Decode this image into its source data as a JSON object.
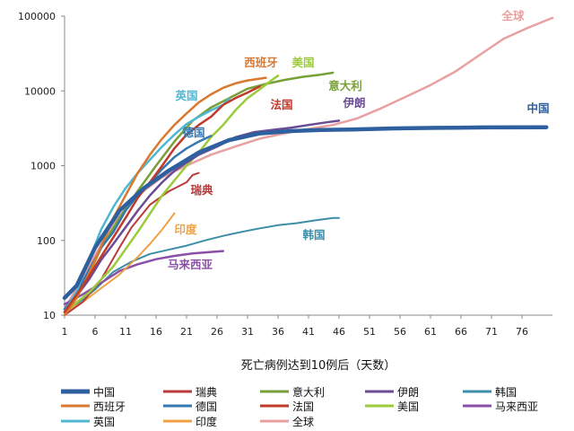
{
  "chart_data": {
    "type": "line",
    "xlabel": "死亡病例达到10例后（天数）",
    "ylabel": "",
    "y_scale": "log",
    "ylim": [
      10,
      100000
    ],
    "xlim": [
      1,
      81
    ],
    "grid": false,
    "legend_position": "bottom",
    "y_ticks": [
      {
        "value": 10,
        "label": "10"
      },
      {
        "value": 100,
        "label": "100"
      },
      {
        "value": 1000,
        "label": "1000"
      },
      {
        "value": 10000,
        "label": "10000"
      },
      {
        "value": 100000,
        "label": "100000"
      }
    ],
    "x_ticks": [
      1,
      6,
      11,
      16,
      21,
      26,
      31,
      36,
      41,
      46,
      51,
      56,
      61,
      66,
      71,
      76
    ],
    "x_tick_labels": [
      "1",
      "6",
      "11",
      "16",
      "21",
      "26",
      "31",
      "36",
      "41",
      "46",
      "51",
      "56",
      "61",
      "66",
      "71",
      "76"
    ],
    "series": [
      {
        "name": "中国",
        "color": "#2E5F9E",
        "width": 4.5,
        "label": "中国",
        "points": [
          [
            1,
            17
          ],
          [
            3,
            25
          ],
          [
            6,
            80
          ],
          [
            10,
            250
          ],
          [
            14,
            500
          ],
          [
            18,
            850
          ],
          [
            23,
            1500
          ],
          [
            28,
            2200
          ],
          [
            33,
            2700
          ],
          [
            38,
            2900
          ],
          [
            43,
            3000
          ],
          [
            48,
            3050
          ],
          [
            55,
            3150
          ],
          [
            62,
            3200
          ],
          [
            70,
            3250
          ],
          [
            80,
            3270
          ]
        ]
      },
      {
        "name": "瑞典",
        "color": "#B83A3A",
        "width": 2,
        "label": "瑞典",
        "points": [
          [
            1,
            10
          ],
          [
            4,
            15
          ],
          [
            7,
            30
          ],
          [
            10,
            80
          ],
          [
            12,
            150
          ],
          [
            15,
            300
          ],
          [
            18,
            450
          ],
          [
            21,
            600
          ],
          [
            22,
            750
          ],
          [
            23,
            800
          ]
        ]
      },
      {
        "name": "意大利",
        "color": "#77A038",
        "width": 2.5,
        "label": "意大利",
        "points": [
          [
            1,
            12
          ],
          [
            3,
            18
          ],
          [
            5,
            35
          ],
          [
            7,
            80
          ],
          [
            10,
            200
          ],
          [
            13,
            460
          ],
          [
            16,
            1000
          ],
          [
            19,
            2100
          ],
          [
            22,
            4000
          ],
          [
            25,
            6000
          ],
          [
            28,
            8000
          ],
          [
            31,
            10700
          ],
          [
            34,
            12400
          ],
          [
            37,
            14000
          ],
          [
            40,
            15400
          ],
          [
            43,
            16500
          ],
          [
            45,
            17500
          ]
        ]
      },
      {
        "name": "伊朗",
        "color": "#6A4C94",
        "width": 2.5,
        "label": "伊朗",
        "points": [
          [
            1,
            11
          ],
          [
            3,
            18
          ],
          [
            5,
            30
          ],
          [
            7,
            55
          ],
          [
            9,
            90
          ],
          [
            11,
            150
          ],
          [
            13,
            250
          ],
          [
            15,
            400
          ],
          [
            17,
            600
          ],
          [
            19,
            850
          ],
          [
            21,
            1100
          ],
          [
            23,
            1400
          ],
          [
            26,
            1800
          ],
          [
            29,
            2400
          ],
          [
            32,
            2800
          ],
          [
            35,
            3000
          ],
          [
            38,
            3200
          ],
          [
            41,
            3500
          ],
          [
            44,
            3800
          ],
          [
            46,
            4000
          ]
        ]
      },
      {
        "name": "韩国",
        "color": "#3C8EA8",
        "width": 2,
        "label": "韩国",
        "points": [
          [
            1,
            11
          ],
          [
            3,
            14
          ],
          [
            6,
            22
          ],
          [
            9,
            38
          ],
          [
            12,
            52
          ],
          [
            15,
            66
          ],
          [
            18,
            75
          ],
          [
            21,
            85
          ],
          [
            24,
            100
          ],
          [
            27,
            115
          ],
          [
            30,
            130
          ],
          [
            33,
            145
          ],
          [
            36,
            160
          ],
          [
            39,
            170
          ],
          [
            42,
            185
          ],
          [
            45,
            200
          ],
          [
            46,
            200
          ]
        ]
      },
      {
        "name": "西班牙",
        "color": "#D9782F",
        "width": 2.5,
        "label": "西班牙",
        "points": [
          [
            1,
            10
          ],
          [
            3,
            17
          ],
          [
            5,
            36
          ],
          [
            7,
            84
          ],
          [
            9,
            200
          ],
          [
            11,
            400
          ],
          [
            13,
            800
          ],
          [
            15,
            1400
          ],
          [
            17,
            2300
          ],
          [
            19,
            3500
          ],
          [
            21,
            5000
          ],
          [
            23,
            7000
          ],
          [
            25,
            9000
          ],
          [
            27,
            11000
          ],
          [
            29,
            12600
          ],
          [
            31,
            13800
          ],
          [
            34,
            15000
          ]
        ]
      },
      {
        "name": "德国",
        "color": "#3577B0",
        "width": 2.5,
        "label": "德国",
        "points": [
          [
            1,
            12
          ],
          [
            3,
            20
          ],
          [
            5,
            40
          ],
          [
            7,
            80
          ],
          [
            9,
            130
          ],
          [
            11,
            250
          ],
          [
            13,
            400
          ],
          [
            15,
            600
          ],
          [
            17,
            900
          ],
          [
            19,
            1300
          ],
          [
            21,
            1700
          ],
          [
            23,
            2100
          ],
          [
            25,
            2500
          ]
        ]
      },
      {
        "name": "法国",
        "color": "#C0392B",
        "width": 2.5,
        "label": "法国",
        "points": [
          [
            1,
            11
          ],
          [
            3,
            19
          ],
          [
            5,
            33
          ],
          [
            7,
            61
          ],
          [
            9,
            110
          ],
          [
            11,
            200
          ],
          [
            13,
            370
          ],
          [
            15,
            600
          ],
          [
            17,
            1000
          ],
          [
            19,
            1700
          ],
          [
            21,
            2600
          ],
          [
            23,
            3500
          ],
          [
            25,
            4500
          ],
          [
            27,
            6500
          ],
          [
            29,
            8000
          ],
          [
            31,
            9500
          ],
          [
            33,
            11500
          ]
        ]
      },
      {
        "name": "美国",
        "color": "#9BCB3B",
        "width": 2.5,
        "label": "美国",
        "points": [
          [
            1,
            11
          ],
          [
            5,
            20
          ],
          [
            9,
            45
          ],
          [
            13,
            130
          ],
          [
            17,
            400
          ],
          [
            21,
            1000
          ],
          [
            23,
            1500
          ],
          [
            25,
            2400
          ],
          [
            27,
            3500
          ],
          [
            29,
            5500
          ],
          [
            31,
            8000
          ],
          [
            33,
            10500
          ],
          [
            35,
            14000
          ],
          [
            36,
            16000
          ]
        ]
      },
      {
        "name": "马来西亚",
        "color": "#8B4FA8",
        "width": 2.5,
        "label": "马来西亚",
        "points": [
          [
            1,
            14
          ],
          [
            4,
            19
          ],
          [
            7,
            27
          ],
          [
            10,
            39
          ],
          [
            13,
            48
          ],
          [
            16,
            56
          ],
          [
            19,
            62
          ],
          [
            22,
            67
          ],
          [
            25,
            70
          ],
          [
            27,
            72
          ]
        ]
      },
      {
        "name": "英国",
        "color": "#4FB7D3",
        "width": 2.5,
        "label": "英国",
        "points": [
          [
            1,
            11
          ],
          [
            3,
            21
          ],
          [
            5,
            55
          ],
          [
            7,
            140
          ],
          [
            9,
            280
          ],
          [
            11,
            500
          ],
          [
            13,
            800
          ],
          [
            15,
            1200
          ],
          [
            17,
            1800
          ],
          [
            19,
            2600
          ],
          [
            21,
            3600
          ],
          [
            23,
            4500
          ],
          [
            25,
            5500
          ],
          [
            27,
            6500
          ],
          [
            28,
            7800
          ]
        ]
      },
      {
        "name": "印度",
        "color": "#F0A146",
        "width": 2,
        "label": "印度",
        "points": [
          [
            1,
            11
          ],
          [
            4,
            15
          ],
          [
            7,
            23
          ],
          [
            10,
            35
          ],
          [
            13,
            60
          ],
          [
            15,
            90
          ],
          [
            17,
            140
          ],
          [
            19,
            230
          ]
        ]
      },
      {
        "name": "全球",
        "color": "#E8A0A0",
        "width": 2.5,
        "label": "全球",
        "points": [
          [
            1,
            12
          ],
          [
            5,
            45
          ],
          [
            9,
            170
          ],
          [
            13,
            400
          ],
          [
            17,
            700
          ],
          [
            21,
            1000
          ],
          [
            25,
            1400
          ],
          [
            29,
            1800
          ],
          [
            33,
            2300
          ],
          [
            37,
            2700
          ],
          [
            41,
            3100
          ],
          [
            45,
            3500
          ],
          [
            49,
            4300
          ],
          [
            53,
            5900
          ],
          [
            57,
            8400
          ],
          [
            61,
            12000
          ],
          [
            65,
            18000
          ],
          [
            69,
            30000
          ],
          [
            73,
            50000
          ],
          [
            77,
            70000
          ],
          [
            81,
            95000
          ]
        ]
      }
    ]
  }
}
